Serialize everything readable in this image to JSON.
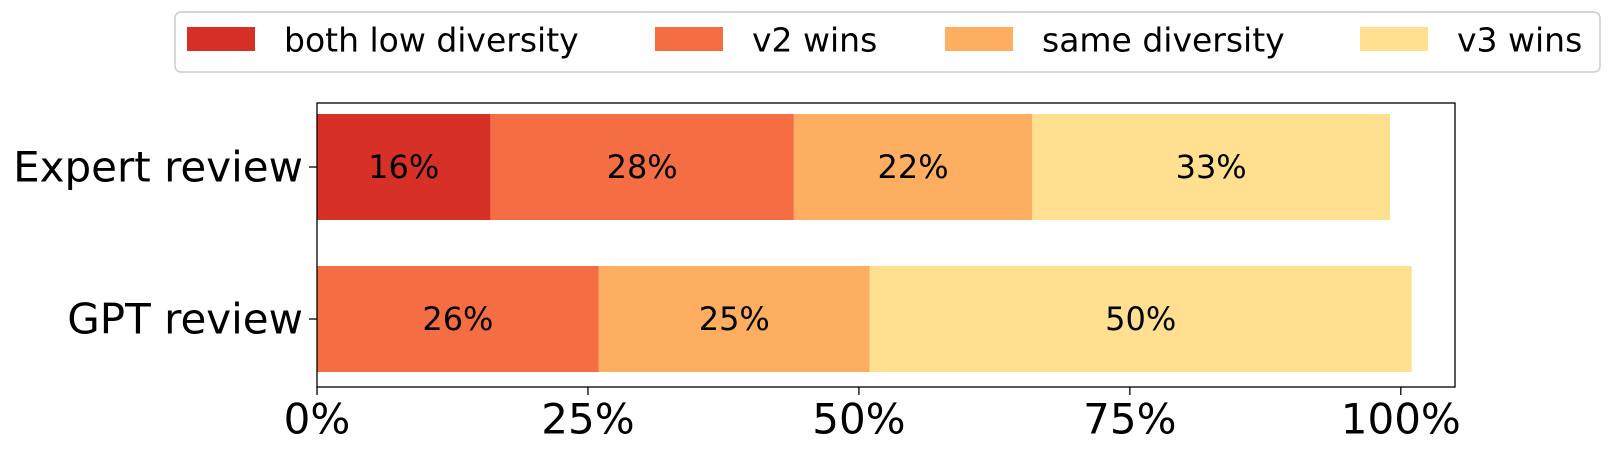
{
  "chart_data": {
    "type": "bar",
    "orientation": "horizontal",
    "stacked": true,
    "title": "",
    "xlabel": "",
    "ylabel": "",
    "categories": [
      "Expert review",
      "GPT review"
    ],
    "series": [
      {
        "name": "both low diversity",
        "color": "#d73027",
        "values": [
          16,
          0
        ]
      },
      {
        "name": "v2 wins",
        "color": "#f46d43",
        "values": [
          28,
          26
        ]
      },
      {
        "name": "same diversity",
        "color": "#fdae61",
        "values": [
          22,
          25
        ]
      },
      {
        "name": "v3 wins",
        "color": "#fee090",
        "values": [
          33,
          50
        ]
      }
    ],
    "data_labels": [
      [
        "16%",
        "28%",
        "22%",
        "33%"
      ],
      [
        "",
        "26%",
        "25%",
        "50%"
      ]
    ],
    "xlim": [
      0,
      105
    ],
    "xticks": [
      0,
      25,
      50,
      75,
      100
    ],
    "xtick_labels": [
      "0%",
      "25%",
      "50%",
      "75%",
      "100%"
    ],
    "legend_position": "top",
    "grid": false
  }
}
